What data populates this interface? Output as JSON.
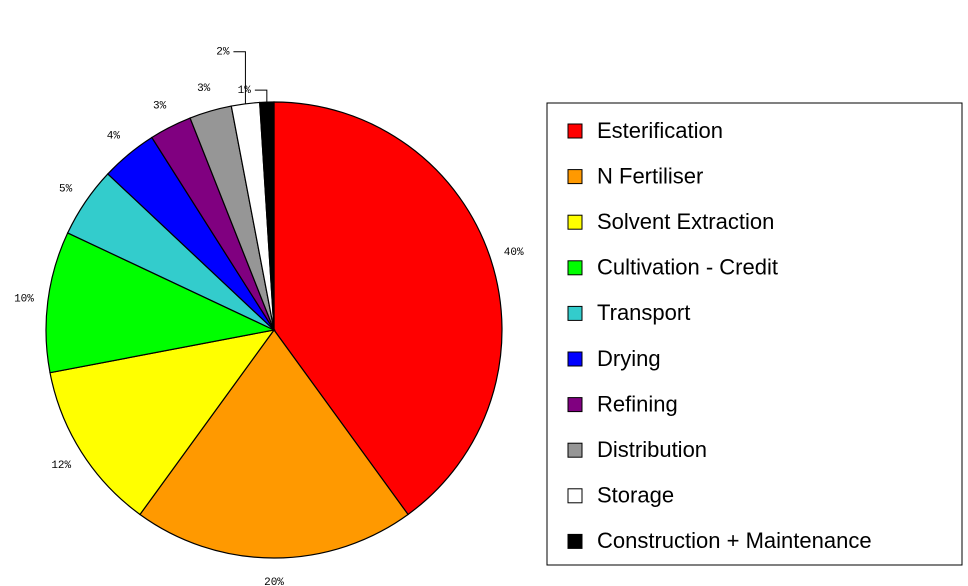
{
  "chart_data": {
    "type": "pie",
    "categories": [
      "Esterification",
      "N Fertiliser",
      "Solvent Extraction",
      "Cultivation - Credit",
      "Transport",
      "Drying",
      "Refining",
      "Distribution",
      "Storage",
      "Construction + Maintenance"
    ],
    "values": [
      40,
      20,
      12,
      10,
      5,
      4,
      3,
      3,
      2,
      1
    ],
    "value_labels": [
      "40%",
      "20%",
      "12%",
      "10%",
      "5%",
      "4%",
      "3%",
      "3%",
      "2%",
      "1%"
    ],
    "colors": [
      "#ff0000",
      "#ff9900",
      "#ffff00",
      "#00ff00",
      "#33cccc",
      "#0000ff",
      "#800080",
      "#969696",
      "#ffffff",
      "#000000"
    ],
    "legend": "right"
  }
}
